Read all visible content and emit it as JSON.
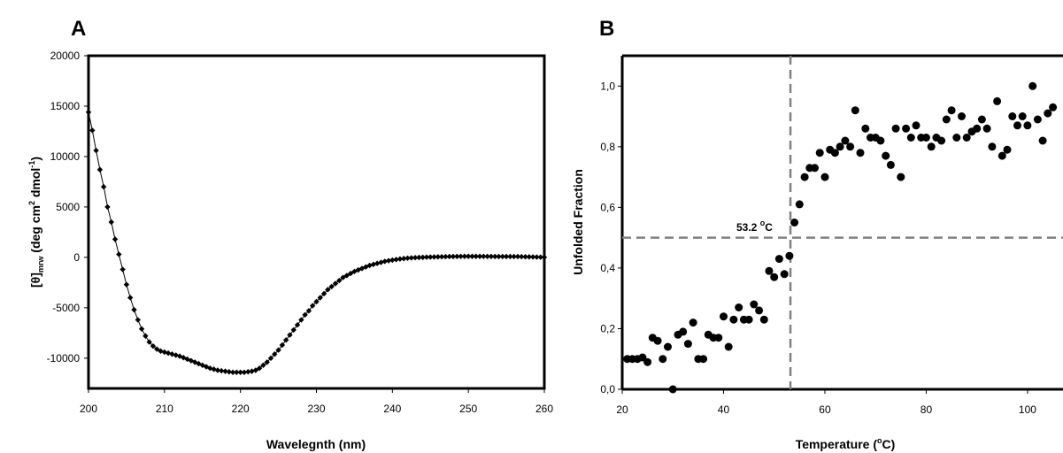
{
  "chart_data": [
    {
      "panel_label": "A",
      "type": "scatter",
      "connected": true,
      "xlabel": "Wavelegnth (nm)",
      "ylabel_parts": {
        "main": "[θ]",
        "sub": "mrw",
        "units": " (deg cm",
        "sup1": "2",
        "units2": " dmol",
        "sup2": "-1",
        "close": ")"
      },
      "xlim": [
        200,
        260
      ],
      "ylim": [
        -13000,
        20000
      ],
      "xticks": [
        200,
        210,
        220,
        230,
        240,
        250,
        260
      ],
      "xtick_labels": [
        "200",
        "210",
        "220",
        "230",
        "240",
        "250",
        "260"
      ],
      "yticks": [
        20000,
        15000,
        10000,
        5000,
        0,
        -5000,
        -10000
      ],
      "ytick_labels": [
        "20000",
        "15000",
        "10000",
        "5000",
        "0",
        "-5000",
        "-10000"
      ],
      "marker": "diamond",
      "color": "#000000",
      "x": [
        200,
        200.5,
        201,
        201.5,
        202,
        202.5,
        203,
        203.5,
        204,
        204.5,
        205,
        205.5,
        206,
        206.5,
        207,
        207.5,
        208,
        208.5,
        209,
        209.5,
        210,
        210.5,
        211,
        211.5,
        212,
        212.5,
        213,
        213.5,
        214,
        214.5,
        215,
        215.5,
        216,
        216.5,
        217,
        217.5,
        218,
        218.5,
        219,
        219.5,
        220,
        220.5,
        221,
        221.5,
        222,
        222.5,
        223,
        223.5,
        224,
        224.5,
        225,
        225.5,
        226,
        226.5,
        227,
        227.5,
        228,
        228.5,
        229,
        229.5,
        230,
        230.5,
        231,
        231.5,
        232,
        232.5,
        233,
        233.5,
        234,
        234.5,
        235,
        235.5,
        236,
        236.5,
        237,
        237.5,
        238,
        238.5,
        239,
        239.5,
        240,
        240.5,
        241,
        241.5,
        242,
        242.5,
        243,
        243.5,
        244,
        244.5,
        245,
        245.5,
        246,
        246.5,
        247,
        247.5,
        248,
        248.5,
        249,
        249.5,
        250,
        250.5,
        251,
        251.5,
        252,
        252.5,
        253,
        253.5,
        254,
        254.5,
        255,
        255.5,
        256,
        256.5,
        257,
        257.5,
        258,
        258.5,
        259,
        259.5,
        260
      ],
      "y": [
        14400,
        12600,
        10600,
        8700,
        7000,
        5000,
        3500,
        1800,
        300,
        -1200,
        -2700,
        -4000,
        -5200,
        -6200,
        -7100,
        -7800,
        -8400,
        -8800,
        -9100,
        -9300,
        -9400,
        -9500,
        -9600,
        -9700,
        -9800,
        -9950,
        -10100,
        -10250,
        -10400,
        -10550,
        -10700,
        -10850,
        -11000,
        -11100,
        -11200,
        -11250,
        -11300,
        -11350,
        -11400,
        -11400,
        -11400,
        -11400,
        -11350,
        -11300,
        -11200,
        -11000,
        -10700,
        -10400,
        -10000,
        -9600,
        -9200,
        -8700,
        -8200,
        -7700,
        -7200,
        -6700,
        -6200,
        -5700,
        -5300,
        -4800,
        -4400,
        -4000,
        -3600,
        -3200,
        -2900,
        -2600,
        -2300,
        -2000,
        -1800,
        -1600,
        -1400,
        -1250,
        -1100,
        -950,
        -800,
        -700,
        -600,
        -500,
        -400,
        -330,
        -270,
        -210,
        -160,
        -120,
        -80,
        -50,
        -30,
        -10,
        0,
        20,
        30,
        40,
        50,
        60,
        70,
        80,
        85,
        90,
        95,
        100,
        100,
        100,
        100,
        100,
        95,
        90,
        90,
        85,
        80,
        80,
        80,
        80,
        80,
        80,
        70,
        60,
        50,
        40,
        30,
        20,
        10
      ]
    },
    {
      "panel_label": "B",
      "type": "scatter",
      "xlabel_parts": {
        "main": "Temperature (",
        "sup": "o",
        "rest": "C)"
      },
      "ylabel": "Unfolded Fraction",
      "xlim": [
        20,
        107
      ],
      "ylim": [
        0,
        1.1
      ],
      "xticks": [
        20,
        40,
        60,
        80,
        100
      ],
      "xtick_labels": [
        "20",
        "40",
        "60",
        "80",
        "100"
      ],
      "yticks": [
        0,
        0.2,
        0.4,
        0.6,
        0.8,
        1.0
      ],
      "ytick_labels": [
        "0,0",
        "0,2",
        "0,4",
        "0,6",
        "0,8",
        "1,0"
      ],
      "marker": "circle",
      "color": "#000000",
      "x": [
        21,
        22,
        23,
        24,
        25,
        26,
        27,
        28,
        29,
        30,
        31,
        32,
        33,
        34,
        35,
        36,
        37,
        38,
        39,
        40,
        41,
        42,
        43,
        44,
        45,
        46,
        47,
        48,
        49,
        50,
        51,
        52,
        53,
        54,
        55,
        56,
        57,
        58,
        59,
        60,
        61,
        62,
        63,
        64,
        65,
        66,
        67,
        68,
        69,
        70,
        71,
        72,
        73,
        74,
        75,
        76,
        77,
        78,
        79,
        80,
        81,
        82,
        83,
        84,
        85,
        86,
        87,
        88,
        89,
        90,
        91,
        92,
        93,
        94,
        95,
        96,
        97,
        98,
        99,
        100,
        101,
        102,
        103,
        104,
        105
      ],
      "y": [
        0.1,
        0.1,
        0.1,
        0.105,
        0.09,
        0.17,
        0.16,
        0.1,
        0.14,
        0.0,
        0.18,
        0.19,
        0.15,
        0.22,
        0.1,
        0.1,
        0.18,
        0.17,
        0.17,
        0.24,
        0.14,
        0.23,
        0.27,
        0.23,
        0.23,
        0.28,
        0.26,
        0.23,
        0.39,
        0.37,
        0.43,
        0.38,
        0.44,
        0.55,
        0.61,
        0.7,
        0.73,
        0.73,
        0.78,
        0.7,
        0.79,
        0.78,
        0.8,
        0.82,
        0.8,
        0.92,
        0.78,
        0.86,
        0.83,
        0.83,
        0.82,
        0.77,
        0.74,
        0.86,
        0.7,
        0.86,
        0.83,
        0.87,
        0.83,
        0.83,
        0.8,
        0.83,
        0.82,
        0.89,
        0.92,
        0.83,
        0.9,
        0.83,
        0.85,
        0.86,
        0.89,
        0.86,
        0.8,
        0.95,
        0.77,
        0.79,
        0.9,
        0.87,
        0.9,
        0.87,
        1.0,
        0.89,
        0.82,
        0.91,
        0.93
      ],
      "reference_lines": {
        "x": 53.2,
        "y": 0.5,
        "style": "dashed",
        "color": "#808080"
      },
      "annotation": {
        "text": "53.2 ",
        "sup": "o",
        "rest": "C"
      }
    }
  ]
}
